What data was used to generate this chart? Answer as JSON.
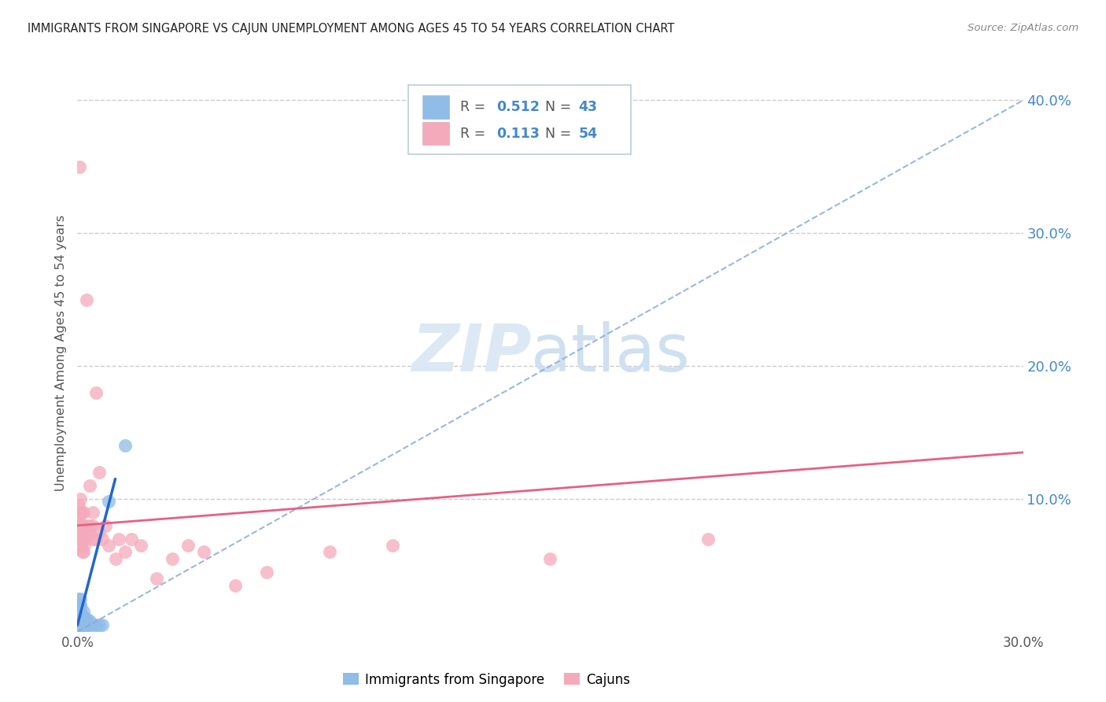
{
  "title": "IMMIGRANTS FROM SINGAPORE VS CAJUN UNEMPLOYMENT AMONG AGES 45 TO 54 YEARS CORRELATION CHART",
  "source": "Source: ZipAtlas.com",
  "ylabel": "Unemployment Among Ages 45 to 54 years",
  "xlim": [
    0.0,
    0.3
  ],
  "ylim": [
    0.0,
    0.42
  ],
  "x_ticks": [
    0.0,
    0.05,
    0.1,
    0.15,
    0.2,
    0.25,
    0.3
  ],
  "y_ticks_right": [
    0.1,
    0.2,
    0.3,
    0.4
  ],
  "y_tick_labels_right": [
    "10.0%",
    "20.0%",
    "30.0%",
    "40.0%"
  ],
  "grid_color": "#cccccc",
  "background_color": "#ffffff",
  "singapore_dot_color": "#90bce8",
  "cajun_dot_color": "#f5aabb",
  "singapore_line_color": "#2266cc",
  "cajun_line_color": "#e86080",
  "dashed_line_color": "#88aadd",
  "right_tick_color": "#4488cc",
  "text_color_dark": "#333333",
  "text_color_mid": "#777777",
  "legend_edge_color": "#bbccdd",
  "singapore_x": [
    0.0002,
    0.0003,
    0.0004,
    0.0005,
    0.0005,
    0.0006,
    0.0006,
    0.0007,
    0.0007,
    0.0008,
    0.0008,
    0.0009,
    0.0009,
    0.001,
    0.001,
    0.001,
    0.001,
    0.001,
    0.0012,
    0.0013,
    0.0014,
    0.0015,
    0.0015,
    0.0016,
    0.0017,
    0.002,
    0.002,
    0.002,
    0.002,
    0.0022,
    0.0025,
    0.003,
    0.003,
    0.003,
    0.0035,
    0.004,
    0.004,
    0.005,
    0.006,
    0.007,
    0.008,
    0.01,
    0.015
  ],
  "singapore_y": [
    0.005,
    0.008,
    0.01,
    0.015,
    0.025,
    0.012,
    0.02,
    0.01,
    0.018,
    0.008,
    0.015,
    0.01,
    0.02,
    0.005,
    0.01,
    0.015,
    0.02,
    0.025,
    0.005,
    0.008,
    0.012,
    0.005,
    0.01,
    0.008,
    0.012,
    0.005,
    0.008,
    0.01,
    0.015,
    0.005,
    0.008,
    0.005,
    0.008,
    0.01,
    0.005,
    0.005,
    0.008,
    0.005,
    0.005,
    0.005,
    0.005,
    0.098,
    0.14
  ],
  "cajun_x": [
    0.0003,
    0.0004,
    0.0005,
    0.0005,
    0.0006,
    0.0007,
    0.0008,
    0.0009,
    0.001,
    0.001,
    0.001,
    0.001,
    0.0012,
    0.0013,
    0.0015,
    0.0015,
    0.0016,
    0.002,
    0.002,
    0.002,
    0.002,
    0.0022,
    0.0025,
    0.003,
    0.003,
    0.003,
    0.004,
    0.004,
    0.004,
    0.005,
    0.005,
    0.005,
    0.006,
    0.006,
    0.007,
    0.007,
    0.008,
    0.009,
    0.01,
    0.012,
    0.013,
    0.015,
    0.017,
    0.02,
    0.025,
    0.03,
    0.035,
    0.04,
    0.05,
    0.06,
    0.08,
    0.1,
    0.15,
    0.2
  ],
  "cajun_y": [
    0.075,
    0.085,
    0.08,
    0.095,
    0.35,
    0.07,
    0.08,
    0.09,
    0.075,
    0.08,
    0.09,
    0.1,
    0.065,
    0.07,
    0.08,
    0.09,
    0.06,
    0.07,
    0.08,
    0.09,
    0.06,
    0.065,
    0.07,
    0.075,
    0.08,
    0.25,
    0.075,
    0.08,
    0.11,
    0.07,
    0.08,
    0.09,
    0.07,
    0.18,
    0.075,
    0.12,
    0.07,
    0.08,
    0.065,
    0.055,
    0.07,
    0.06,
    0.07,
    0.065,
    0.04,
    0.055,
    0.065,
    0.06,
    0.035,
    0.045,
    0.06,
    0.065,
    0.055,
    0.07
  ],
  "sg_trend_x": [
    0.0,
    0.012
  ],
  "sg_trend_y": [
    0.005,
    0.115
  ],
  "dashed_trend_x": [
    0.0,
    0.3
  ],
  "dashed_trend_y": [
    0.0,
    0.4
  ],
  "cajun_trend_x": [
    0.0,
    0.3
  ],
  "cajun_trend_y": [
    0.08,
    0.135
  ]
}
